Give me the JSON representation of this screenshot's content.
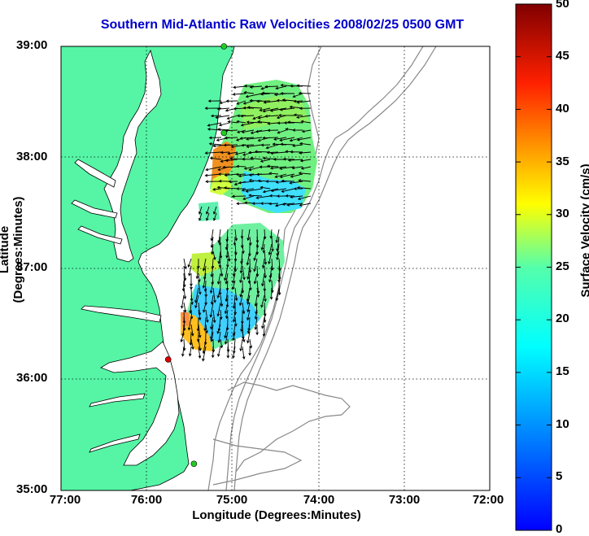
{
  "title": "Southern Mid-Atlantic Raw Velocities 2008/02/25 0500 GMT",
  "axes": {
    "xlabel": "Longitude (Degrees:Minutes)",
    "ylabel": "Latitude (Degrees:Minutes)",
    "xticks": [
      "77:00",
      "76:00",
      "75:00",
      "74:00",
      "73:00",
      "72:00"
    ],
    "yticks": [
      "39:00",
      "38:00",
      "37:00",
      "36:00",
      "35:00"
    ],
    "x_range_deg_west": [
      77,
      72
    ],
    "y_range_deg_north": [
      35,
      39
    ],
    "grid": "dotted"
  },
  "colorbar": {
    "label": "Surface Velocity (cm/s)",
    "ticks": [
      "50",
      "45",
      "40",
      "35",
      "30",
      "25",
      "20",
      "15",
      "10",
      "5",
      "0"
    ],
    "range": [
      0,
      50
    ],
    "colormap": "jet"
  },
  "colors": {
    "land": "#55f5a5",
    "coastline": "#000000",
    "bathymetry": "#888888",
    "title": "#0000cc",
    "site_green": "#22cc22",
    "site_red": "#dd0000"
  },
  "sites": [
    {
      "name": "",
      "lon": -75.1,
      "lat": 39.0,
      "status": "green"
    },
    {
      "name": "",
      "lon": -75.1,
      "lat": 38.22,
      "status": "green"
    },
    {
      "name": "",
      "lon": -75.75,
      "lat": 36.18,
      "status": "red"
    },
    {
      "name": "",
      "lon": -75.45,
      "lat": 35.24,
      "status": "green"
    }
  ]
}
